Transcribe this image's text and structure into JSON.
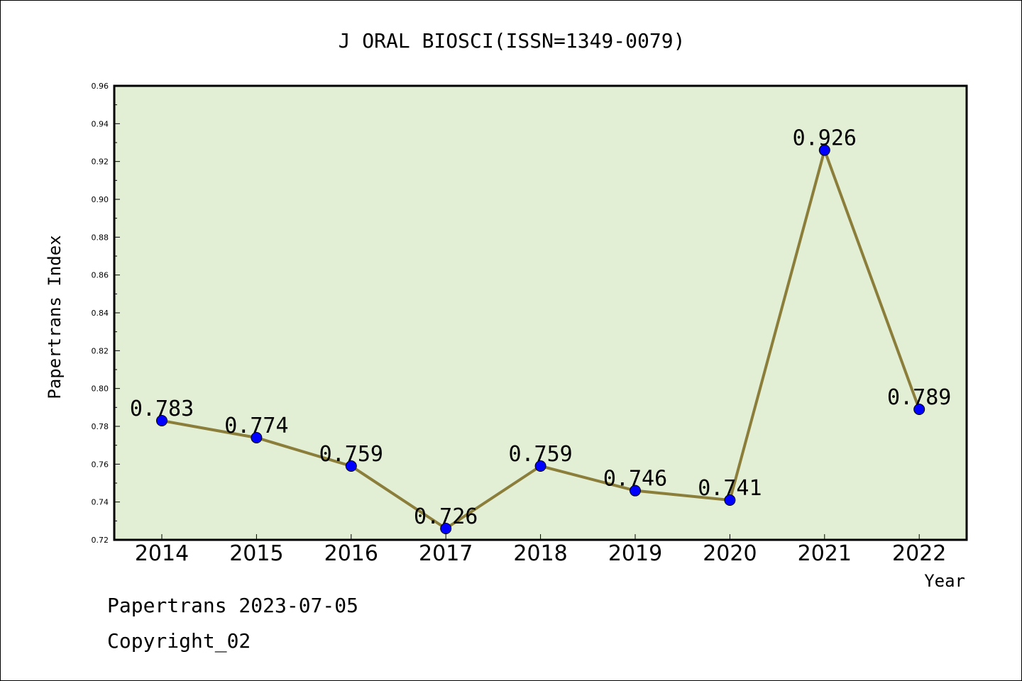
{
  "chart_data": {
    "type": "line",
    "title": "J ORAL BIOSCI(ISSN=1349-0079)",
    "xlabel": "Year",
    "ylabel": "Papertrans Index",
    "categories": [
      "2014",
      "2015",
      "2016",
      "2017",
      "2018",
      "2019",
      "2020",
      "2021",
      "2022"
    ],
    "values": [
      0.783,
      0.774,
      0.759,
      0.726,
      0.759,
      0.746,
      0.741,
      0.926,
      0.789
    ],
    "data_labels": [
      "0.783",
      "0.774",
      "0.759",
      "0.726",
      "0.759",
      "0.746",
      "0.741",
      "0.926",
      "0.789"
    ],
    "ylim": [
      0.72,
      0.96
    ],
    "yticks": [
      "0.72",
      "0.74",
      "0.76",
      "0.78",
      "0.80",
      "0.82",
      "0.84",
      "0.86",
      "0.88",
      "0.90",
      "0.92",
      "0.94",
      "0.96"
    ],
    "grid": false,
    "colors": {
      "plot_background": "#e2efd5",
      "line": "#8b7d3a",
      "marker": "#0000ff"
    }
  },
  "footer": {
    "line1": "Papertrans 2023-07-05",
    "line2": "Copyright_02"
  }
}
